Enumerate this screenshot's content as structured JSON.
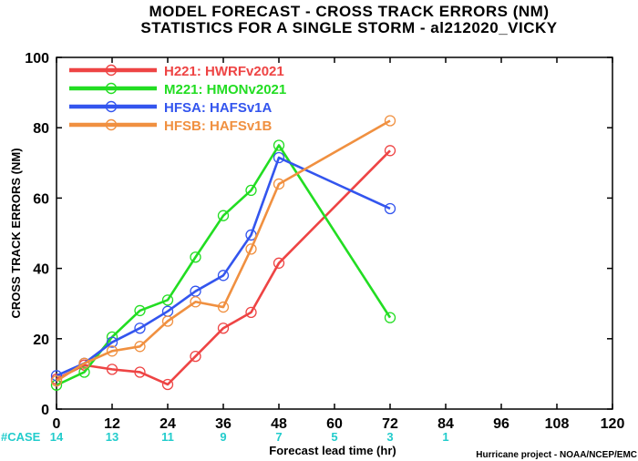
{
  "chart_data": {
    "type": "line",
    "title": "MODEL FORECAST - CROSS TRACK ERRORS (NM)",
    "subtitle": "STATISTICS FOR A SINGLE STORM - al212020_VICKY",
    "xlabel": "Forecast lead time (hr)",
    "ylabel": "CROSS TRACK ERRORS (NM)",
    "xlim": [
      0,
      120
    ],
    "ylim": [
      0,
      100
    ],
    "x_ticks": [
      0,
      12,
      24,
      36,
      48,
      60,
      72,
      84,
      96,
      108,
      120
    ],
    "y_ticks": [
      0,
      20,
      40,
      60,
      80,
      100
    ],
    "grid": false,
    "legend_position": "top-left",
    "series": [
      {
        "name": "H221: HWRFv2021",
        "color": "#ee4444",
        "x": [
          0,
          6,
          12,
          18,
          24,
          30,
          36,
          42,
          48,
          72
        ],
        "values": [
          8.5,
          12.5,
          11.3,
          10.5,
          7.0,
          15.0,
          23.0,
          27.5,
          41.5,
          73.5
        ]
      },
      {
        "name": "M221: HMONv2021",
        "color": "#22dd22",
        "x": [
          0,
          6,
          12,
          18,
          24,
          30,
          36,
          42,
          48,
          72
        ],
        "values": [
          6.8,
          10.5,
          20.5,
          28.0,
          31.0,
          43.2,
          55.0,
          62.2,
          75.0,
          26.0
        ]
      },
      {
        "name": "HFSA: HAFSv1A",
        "color": "#3355ee",
        "x": [
          0,
          6,
          12,
          18,
          24,
          30,
          36,
          42,
          48,
          72
        ],
        "values": [
          9.5,
          13.0,
          19.0,
          23.0,
          27.8,
          33.5,
          38.0,
          49.5,
          71.5,
          57.0
        ]
      },
      {
        "name": "HFSB: HAFSv1B",
        "color": "#f09040",
        "x": [
          0,
          6,
          12,
          18,
          24,
          30,
          36,
          42,
          48,
          72
        ],
        "values": [
          8.0,
          13.0,
          16.5,
          17.8,
          25.0,
          30.5,
          29.0,
          45.5,
          64.0,
          82.0
        ]
      }
    ],
    "case_counts": {
      "label": "#CASE",
      "x": [
        0,
        12,
        24,
        36,
        48,
        60,
        72,
        84
      ],
      "values": [
        "14",
        "13",
        "11",
        "9",
        "7",
        "5",
        "3",
        "1"
      ],
      "color": "#22cccc"
    }
  },
  "credit": "Hurricane project - NOAA/NCEP/EMC"
}
